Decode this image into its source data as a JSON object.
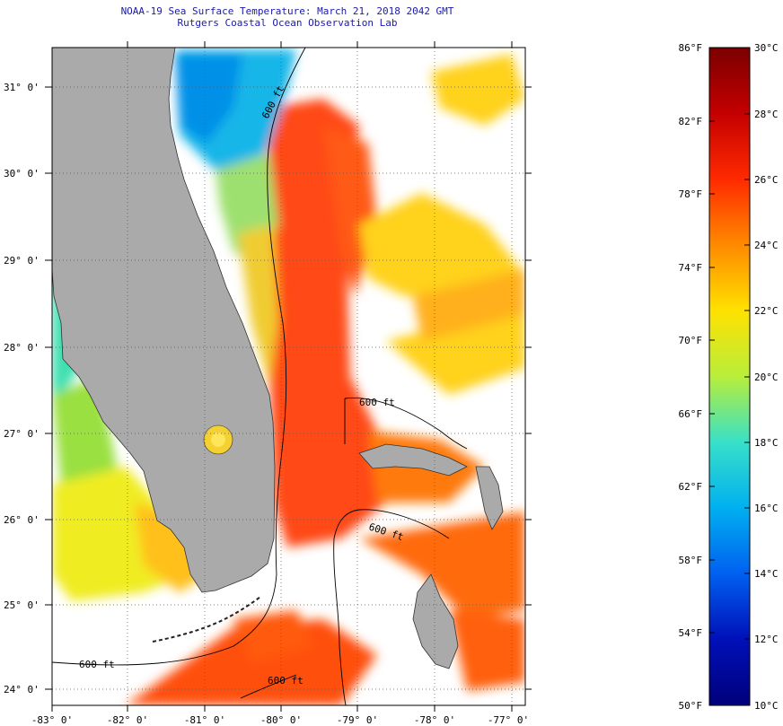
{
  "header": {
    "title": "NOAA-19 Sea Surface Temperature:  March 21, 2018 2042 GMT",
    "subtitle": "Rutgers Coastal Ocean Observation Lab"
  },
  "map": {
    "lat_labels": [
      "31° 0'",
      "30° 0'",
      "29° 0'",
      "28° 0'",
      "27° 0'",
      "26° 0'",
      "25° 0'",
      "24° 0'"
    ],
    "lon_labels": [
      "-83° 0'",
      "-82° 0'",
      "-81° 0'",
      "-80° 0'",
      "-79° 0'",
      "-78° 0'",
      "-77° 0'"
    ],
    "isobath_labels": [
      "600 ft",
      "600 ft",
      "600 ft",
      "600 ft",
      "600 ft"
    ],
    "land_color": "#aaaaaa"
  },
  "colorbar": {
    "fahrenheit_labels": [
      "86°F",
      "82°F",
      "78°F",
      "74°F",
      "70°F",
      "66°F",
      "62°F",
      "58°F",
      "54°F",
      "50°F"
    ],
    "celsius_labels": [
      "30°C",
      "28°C",
      "26°C",
      "24°C",
      "22°C",
      "20°C",
      "18°C",
      "16°C",
      "14°C",
      "12°C",
      "10°C"
    ],
    "gradient_colors": [
      "#7a0000",
      "#c40000",
      "#ff2a00",
      "#ff8a00",
      "#ffe100",
      "#b8ee3a",
      "#38e0c8",
      "#00b0f0",
      "#0060f0",
      "#0010b8",
      "#00007a"
    ]
  }
}
